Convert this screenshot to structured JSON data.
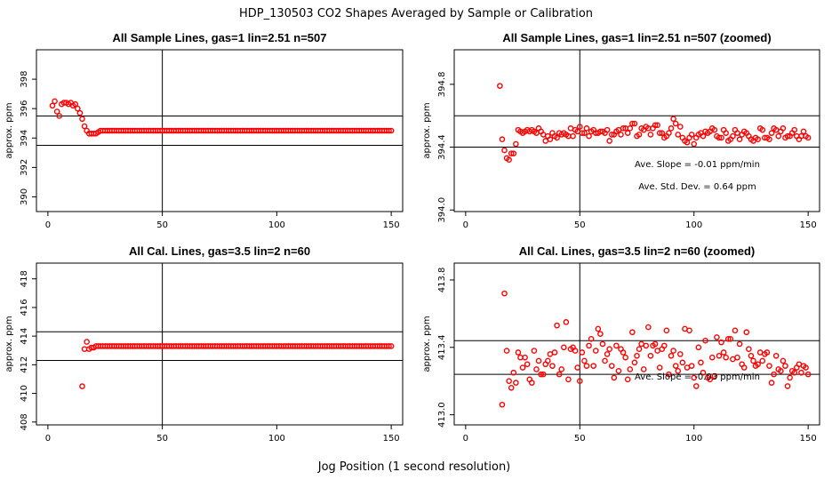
{
  "figure": {
    "title": "HDP_130503  CO2 Shapes Averaged by Sample or Calibration",
    "xlabel": "Jog Position (1 second resolution)"
  },
  "chart_data": [
    {
      "type": "scatter",
      "title": "All Sample Lines, gas=1 lin=2.51 n=507",
      "xlabel": "",
      "ylabel": "approx. ppm",
      "xlim": [
        -5,
        155
      ],
      "ylim": [
        389,
        400
      ],
      "xticks": [
        0,
        50,
        100,
        150
      ],
      "yticks": [
        390,
        392,
        394,
        396,
        398
      ],
      "color": "#ff0000",
      "vline": 50,
      "hlines": [
        393.5,
        395.5
      ],
      "annotations": [],
      "series": [
        {
          "x_start": 2,
          "x_step": 1,
          "values": [
            396.2,
            396.5,
            395.8,
            395.5,
            396.3,
            396.4,
            396.4,
            396.3,
            396.4,
            396.2,
            396.3,
            396.0,
            395.7,
            395.3,
            394.8,
            394.5,
            394.3,
            394.3,
            394.3,
            394.3,
            394.4,
            394.5,
            394.5,
            394.5,
            394.5,
            394.5,
            394.5,
            394.5,
            394.5,
            394.5,
            394.5,
            394.5,
            394.5,
            394.5,
            394.5,
            394.5,
            394.5,
            394.5,
            394.5,
            394.5,
            394.5,
            394.5,
            394.5,
            394.5,
            394.5,
            394.5,
            394.5,
            394.5,
            394.5,
            394.5,
            394.5,
            394.5,
            394.5,
            394.5,
            394.5,
            394.5,
            394.5,
            394.5,
            394.5,
            394.5,
            394.5,
            394.5,
            394.5,
            394.5,
            394.5,
            394.5,
            394.5,
            394.5,
            394.5,
            394.5,
            394.5,
            394.5,
            394.5,
            394.5,
            394.5,
            394.5,
            394.5,
            394.5,
            394.5,
            394.5,
            394.5,
            394.5,
            394.5,
            394.5,
            394.5,
            394.5,
            394.5,
            394.5,
            394.5,
            394.5,
            394.5,
            394.5,
            394.5,
            394.5,
            394.5,
            394.5,
            394.5,
            394.5,
            394.5,
            394.5,
            394.5,
            394.5,
            394.5,
            394.5,
            394.5,
            394.5,
            394.5,
            394.5,
            394.5,
            394.5,
            394.5,
            394.5,
            394.5,
            394.5,
            394.5,
            394.5,
            394.5,
            394.5,
            394.5,
            394.5,
            394.5,
            394.5,
            394.5,
            394.5,
            394.5,
            394.5,
            394.5,
            394.5,
            394.5,
            394.5,
            394.5,
            394.5,
            394.5,
            394.5,
            394.5,
            394.5,
            394.5,
            394.5,
            394.5,
            394.5,
            394.5,
            394.5,
            394.5,
            394.5,
            394.5,
            394.5,
            394.5,
            394.5,
            394.5
          ]
        }
      ]
    },
    {
      "type": "scatter",
      "title": "All Sample Lines, gas=1 lin=2.51 n=507 (zoomed)",
      "xlabel": "",
      "ylabel": "approx. ppm",
      "xlim": [
        -5,
        155
      ],
      "ylim": [
        393.99,
        395.02
      ],
      "xticks": [
        0,
        50,
        100,
        150
      ],
      "yticks": [
        394.0,
        394.4,
        394.8
      ],
      "color": "#ff0000",
      "vline": 50,
      "hlines": [
        394.4,
        394.6
      ],
      "annotations": [
        "Ave. Slope =  -0.01  ppm/min",
        "Ave. Std. Dev. =  0.64  ppm"
      ],
      "series": [
        {
          "x_start": 15,
          "x_step": 1,
          "values": [
            394.79,
            394.45,
            394.38,
            394.33,
            394.32,
            394.36,
            394.36,
            394.42,
            394.51,
            394.5,
            394.49,
            394.5,
            394.51,
            394.5,
            394.51,
            394.5,
            394.49,
            394.52,
            394.5,
            394.48,
            394.44,
            394.47,
            394.45,
            394.49,
            394.47,
            394.46,
            394.49,
            394.48,
            394.49,
            394.48,
            394.47,
            394.52,
            394.47,
            394.51,
            394.5,
            394.53,
            394.49,
            394.49,
            394.52,
            394.47,
            394.5,
            394.51,
            394.49,
            394.49,
            394.5,
            394.5,
            394.49,
            394.51,
            394.44,
            394.48,
            394.48,
            394.5,
            394.51,
            394.48,
            394.52,
            394.52,
            394.49,
            394.52,
            394.55,
            394.55,
            394.47,
            394.48,
            394.52,
            394.51,
            394.53,
            394.52,
            394.48,
            394.52,
            394.54,
            394.54,
            394.49,
            394.49,
            394.46,
            394.47,
            394.49,
            394.52,
            394.58,
            394.55,
            394.48,
            394.53,
            394.46,
            394.44,
            394.43,
            394.46,
            394.48,
            394.42,
            394.46,
            394.48,
            394.49,
            394.47,
            394.5,
            394.49,
            394.5,
            394.52,
            394.51,
            394.47,
            394.46,
            394.46,
            394.51,
            394.49,
            394.44,
            394.45,
            394.47,
            394.51,
            394.49,
            394.45,
            394.48,
            394.5,
            394.49,
            394.47,
            394.45,
            394.44,
            394.46,
            394.45,
            394.52,
            394.51,
            394.46,
            394.46,
            394.45,
            394.49,
            394.52,
            394.51,
            394.47,
            394.5,
            394.52,
            394.46,
            394.47,
            394.47,
            394.49,
            394.51,
            394.47,
            394.45,
            394.47,
            394.5,
            394.47,
            394.46
          ]
        }
      ]
    },
    {
      "type": "scatter",
      "title": "All Cal. Lines, gas=3.5 lin=2 n=60",
      "xlabel": "",
      "ylabel": "approx. ppm",
      "xlim": [
        -5,
        155
      ],
      "ylim": [
        407.8,
        419.1
      ],
      "xticks": [
        0,
        50,
        100,
        150
      ],
      "yticks": [
        408,
        410,
        412,
        414,
        416,
        418
      ],
      "color": "#ff0000",
      "vline": 50,
      "hlines": [
        412.3,
        414.3
      ],
      "annotations": [],
      "series": [
        {
          "x_start": 15,
          "x_step": 1,
          "values": [
            410.5,
            413.1,
            413.6,
            413.1,
            413.2,
            413.2,
            413.3,
            413.3,
            413.3,
            413.3,
            413.3,
            413.3,
            413.3,
            413.3,
            413.3,
            413.3,
            413.3,
            413.3,
            413.3,
            413.3,
            413.3,
            413.3,
            413.3,
            413.3,
            413.3,
            413.3,
            413.3,
            413.3,
            413.3,
            413.3,
            413.3,
            413.3,
            413.3,
            413.3,
            413.3,
            413.3,
            413.3,
            413.3,
            413.3,
            413.3,
            413.3,
            413.3,
            413.3,
            413.3,
            413.3,
            413.3,
            413.3,
            413.3,
            413.3,
            413.3,
            413.3,
            413.3,
            413.3,
            413.3,
            413.3,
            413.3,
            413.3,
            413.3,
            413.3,
            413.3,
            413.3,
            413.3,
            413.3,
            413.3,
            413.3,
            413.3,
            413.3,
            413.3,
            413.3,
            413.3,
            413.3,
            413.3,
            413.3,
            413.3,
            413.3,
            413.3,
            413.3,
            413.3,
            413.3,
            413.3,
            413.3,
            413.3,
            413.3,
            413.3,
            413.3,
            413.3,
            413.3,
            413.3,
            413.3,
            413.3,
            413.3,
            413.3,
            413.3,
            413.3,
            413.3,
            413.3,
            413.3,
            413.3,
            413.3,
            413.3,
            413.3,
            413.3,
            413.3,
            413.3,
            413.3,
            413.3,
            413.3,
            413.3,
            413.3,
            413.3,
            413.3,
            413.3,
            413.3,
            413.3,
            413.3,
            413.3,
            413.3,
            413.3,
            413.3,
            413.3,
            413.3,
            413.3,
            413.3,
            413.3,
            413.3,
            413.3,
            413.3,
            413.3,
            413.3,
            413.3,
            413.3,
            413.3,
            413.3,
            413.3,
            413.3,
            413.3
          ]
        }
      ]
    },
    {
      "type": "scatter",
      "title": "All Cal. Lines, gas=3.5 lin=2 n=60 (zoomed)",
      "xlabel": "",
      "ylabel": "approx. ppm",
      "xlim": [
        -5,
        155
      ],
      "ylim": [
        412.94,
        413.9
      ],
      "xticks": [
        0,
        50,
        100,
        150
      ],
      "yticks": [
        413.0,
        413.4,
        413.8
      ],
      "color": "#ff0000",
      "vline": 50,
      "hlines": [
        413.24,
        413.44
      ],
      "annotations": [
        "Ave. Slope =  -0.03  ppm/min"
      ],
      "series": [
        {
          "x_start": 16,
          "x_step": 1,
          "values": [
            413.06,
            413.72,
            413.38,
            413.2,
            413.16,
            413.25,
            413.19,
            413.37,
            413.34,
            413.28,
            413.34,
            413.3,
            413.21,
            413.19,
            413.38,
            413.27,
            413.32,
            413.24,
            413.24,
            413.3,
            413.32,
            413.36,
            413.29,
            413.37,
            413.53,
            413.24,
            413.27,
            413.4,
            413.55,
            413.21,
            413.39,
            413.4,
            413.38,
            413.28,
            413.2,
            413.37,
            413.32,
            413.29,
            413.41,
            413.45,
            413.29,
            413.38,
            413.51,
            413.48,
            413.42,
            413.32,
            413.36,
            413.39,
            413.29,
            413.22,
            413.41,
            413.26,
            413.39,
            413.37,
            413.34,
            413.21,
            413.27,
            413.49,
            413.31,
            413.35,
            413.39,
            413.42,
            413.27,
            413.41,
            413.52,
            413.35,
            413.41,
            413.42,
            413.38,
            413.28,
            413.39,
            413.41,
            413.5,
            413.24,
            413.35,
            413.38,
            413.29,
            413.26,
            413.36,
            413.31,
            413.51,
            413.28,
            413.5,
            413.29,
            413.22,
            413.17,
            413.4,
            413.31,
            413.25,
            413.44,
            413.22,
            413.21,
            413.34,
            413.23,
            413.46,
            413.35,
            413.43,
            413.37,
            413.34,
            413.45,
            413.45,
            413.33,
            413.5,
            413.34,
            413.42,
            413.3,
            413.28,
            413.49,
            413.39,
            413.35,
            413.32,
            413.29,
            413.3,
            413.37,
            413.32,
            413.36,
            413.37,
            413.29,
            413.19,
            413.24,
            413.35,
            413.27,
            413.26,
            413.32,
            413.29,
            413.17,
            413.22,
            413.26,
            413.25,
            413.28,
            413.3,
            413.25,
            413.29,
            413.28,
            413.24
          ]
        }
      ]
    }
  ]
}
